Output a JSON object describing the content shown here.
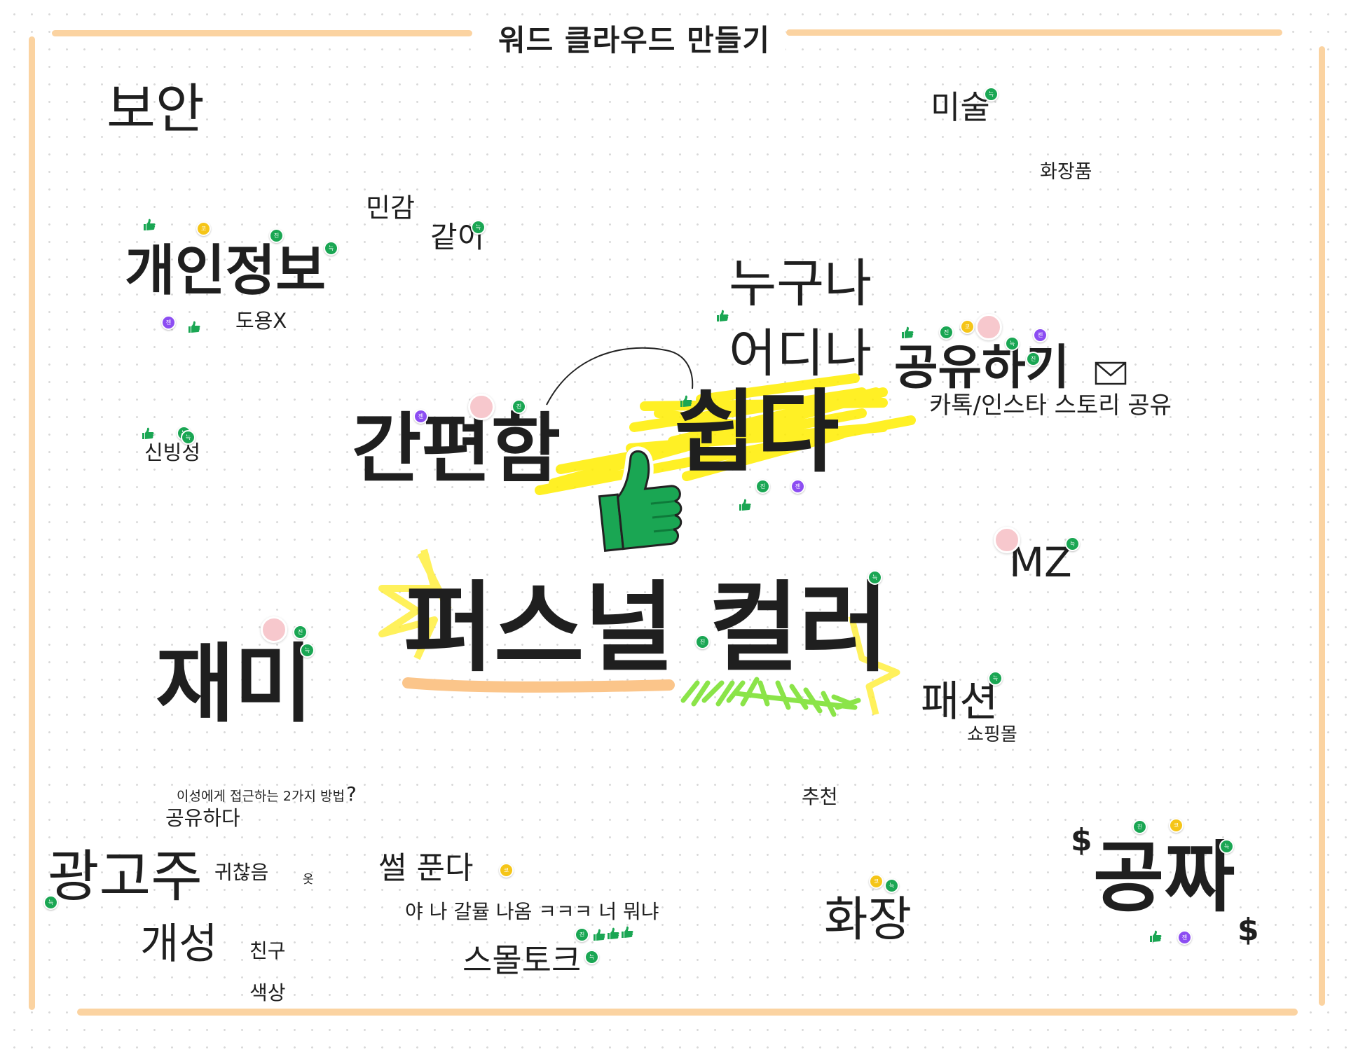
{
  "board": {
    "title": "워드 클라우드 만들기",
    "colors": {
      "frame": "#fbd3a1",
      "text": "#1f1f1f",
      "reaction_green": "#1aa653",
      "reaction_yellow": "#f5c518",
      "reaction_purple": "#8c4df2",
      "highlight_yellow": "#ffee00",
      "highlight_green": "#77e02a",
      "underline_orange": "#fbc58a"
    }
  },
  "words": {
    "boan": "보안",
    "misul": "미술",
    "hwajangpum": "화장품",
    "mingam": "민감",
    "gachi": "같이",
    "gaeinjeongbo": "개인정보",
    "doyong": "도용X",
    "nuguna": "누구나",
    "eodina": "어디나",
    "gongyuhagi": "공유하기",
    "katok": "카톡/인스타 스토리 공유",
    "sinbingseong": "신빙성",
    "ganpyeonham": "간편함",
    "swipda": "쉽다",
    "mz": "MZ",
    "personal_color": "퍼스널 컬러",
    "jaemi": "재미",
    "paesyeon": "패션",
    "shoppingmol": "쇼핑몰",
    "iseong": "이성에게 접근하는 2가지 방법",
    "question_mark": "?",
    "chucheon": "추천",
    "gongyuhada": "공유하다",
    "gwanggoju": "광고주",
    "gwichaneum": "귀찮음",
    "ot": "옷",
    "sseol": "썰 푼다",
    "ya": "야 나 갈뮬 나옴 ㅋㅋㅋ 너 뭐냐",
    "gaeseong": "개성",
    "chingu": "친구",
    "saeksang": "색상",
    "smalltalk": "스몰토크",
    "hwajang": "화장",
    "gongjja": "공짜",
    "dollar_1": "$",
    "dollar_2": "$"
  },
  "stickers": {
    "thumbs_up": "thumbs-up-sticker",
    "mail": "envelope-icon"
  },
  "reactions": {
    "jin": "진",
    "nuk": "늑",
    "jen": "젠",
    "kko": "코"
  }
}
